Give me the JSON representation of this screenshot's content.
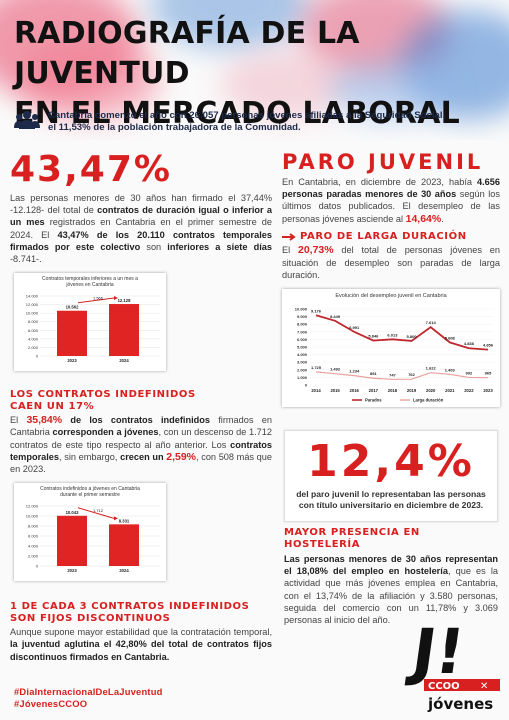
{
  "header": {
    "title_line1": "RADIOGRAFÍA DE LA JUVENTUD",
    "title_line2": "EN EL MERCADO LABORAL",
    "intro_line1": "Cantabria comenzó el año con 26.057 personas jóvenes afiliadas a la Seguridad Social,",
    "intro_line2": "el 11,53% de la población trabajadora de la Comunidad.",
    "intro_icon": "people-icon"
  },
  "temporales": {
    "big_number": "43,47%",
    "t1": "Las personas menores de 30 años han firmado el 37,44% -12.128- del total de ",
    "t2": "contratos de duración igual o inferior a un mes",
    "t3": " registrados en Cantabria en el primer semestre de 2024. El ",
    "t4": "43,47% de los 20.110 contratos temporales firmados por este colectivo",
    "t5": " son ",
    "t6": "inferiores a siete días",
    "t7": " -8.741-."
  },
  "chart1": {
    "title": "Contratos temporales inferiores a un mes a jóvenes en Cantabria",
    "y_ticks": [
      "14.000",
      "12.000",
      "10.000",
      "8.000",
      "6.000",
      "4.000",
      "2.000",
      "0"
    ],
    "delta_label": "1.566",
    "bar_color": "#e02424",
    "chart_data": {
      "type": "bar",
      "categories": [
        "2023",
        "2024"
      ],
      "values": [
        10562,
        12128
      ],
      "value_labels": [
        "10.562",
        "12.128"
      ],
      "ylim": [
        0,
        14000
      ]
    }
  },
  "indefinidos": {
    "heading1": "LOS CONTRATOS INDEFINIDOS",
    "heading2": "CAEN UN 17%",
    "t1": "El ",
    "hl1": "35,84%",
    "t2": " de los contratos indefinidos",
    "t3": " firmados en Cantabria ",
    "t4": "corresponden a jóvenes",
    "t5": ", con un descenso de 1.712 contratos de este tipo respecto al año anterior. Los ",
    "t6": "contratos temporales",
    "t7": ", sin embargo, ",
    "t8": "crecen un",
    "hl2": "2,59%",
    "t9": ", con 508 más que en 2023."
  },
  "chart2": {
    "title": "Contratos indefinidos a jóvenes en Cantabria durante el primer semestre",
    "y_ticks": [
      "12.000",
      "10.000",
      "8.000",
      "6.000",
      "4.000",
      "2.000",
      "0"
    ],
    "delta_label": "1.712",
    "bar_color": "#e02424",
    "chart_data": {
      "type": "bar",
      "categories": [
        "2023",
        "2024"
      ],
      "values": [
        10043,
        8331
      ],
      "value_labels": [
        "10.043",
        "8.331"
      ],
      "ylim": [
        0,
        12000
      ]
    }
  },
  "fijos": {
    "heading1": "1 DE CADA 3 CONTRATOS INDEFINIDOS",
    "heading2": "SON FIJOS DISCONTINUOS",
    "t1": "Aunque supone mayor estabilidad que la contratación temporal, ",
    "t2": "la juventud aglutina el 42,80% del total de contratos fijos discontinuos firmados en Cantabria."
  },
  "paro": {
    "heading": "PARO JUVENIL",
    "t1": "En Cantabria, en diciembre de 2023, había ",
    "t2": "4.656 personas paradas menores de 30 años",
    "t3": " según los últimos datos publicados. El desempleo de las personas jóvenes asciende al ",
    "hl": "14,64%",
    "t4": "."
  },
  "larga": {
    "heading": "PARO DE LARGA DURACIÓN",
    "t1": "El ",
    "hl": "20,73%",
    "t2": " del total de personas jóvenes en situación de desempleo son paradas de larga duración."
  },
  "chart3": {
    "title": "Evolución del desempleo juvenil en Cantabria",
    "y_ticks": [
      "10.000",
      "9.000",
      "8.000",
      "7.000",
      "6.000",
      "5.000",
      "4.000",
      "3.000",
      "2.000",
      "1.000",
      "0"
    ],
    "line_color": "#c0282d",
    "line_color2": "#e9a09c",
    "chart_data": {
      "type": "line",
      "x": [
        "2014",
        "2015",
        "2016",
        "2017",
        "2018",
        "2019",
        "2020",
        "2021",
        "2022",
        "2023"
      ],
      "ylim": [
        0,
        10000
      ],
      "series": [
        {
          "name": "Parados",
          "values": [
            9176,
            8449,
            6991,
            5846,
            6013,
            5800,
            7614,
            5608,
            4838,
            4656
          ],
          "labels": [
            "9.176",
            "8.449",
            "6.991",
            "5.846",
            "6.013",
            "5.800",
            "7.614",
            "5.608",
            "4.838",
            "4.656"
          ]
        },
        {
          "name": "Larga duración",
          "values": [
            1725,
            1492,
            1234,
            891,
            747,
            762,
            1622,
            1403,
            992,
            965
          ],
          "labels": [
            "1.725",
            "1.492",
            "1.234",
            "891",
            "747",
            "762",
            "1.622",
            "1.403",
            "992",
            "965"
          ]
        }
      ]
    }
  },
  "universitario": {
    "big_number": "12,4%",
    "t1": "del paro juvenil lo representaban las personas",
    "t2": "con título universitario en diciembre de 2023."
  },
  "hosteleria": {
    "heading1": "MAYOR PRESENCIA EN",
    "heading2": "HOSTELERÍA",
    "t1": "Las personas menores de 30 años representan el 18,08% del empleo en hostelería",
    "t2": ", que es la actividad que más jóvenes emplea en Cantabria, con el 13,74% de la afiliación y 3.580 personas, seguida del comercio con un 11,78% y 3.069 personas al inicio del año."
  },
  "footer": {
    "hashtag1": "#DiaInternacionalDeLaJuventud",
    "hashtag2": "#JóvenesCCOO",
    "logo_mark": "J!",
    "logo_text": "CCOO",
    "logo_sub": "jóvenes"
  }
}
